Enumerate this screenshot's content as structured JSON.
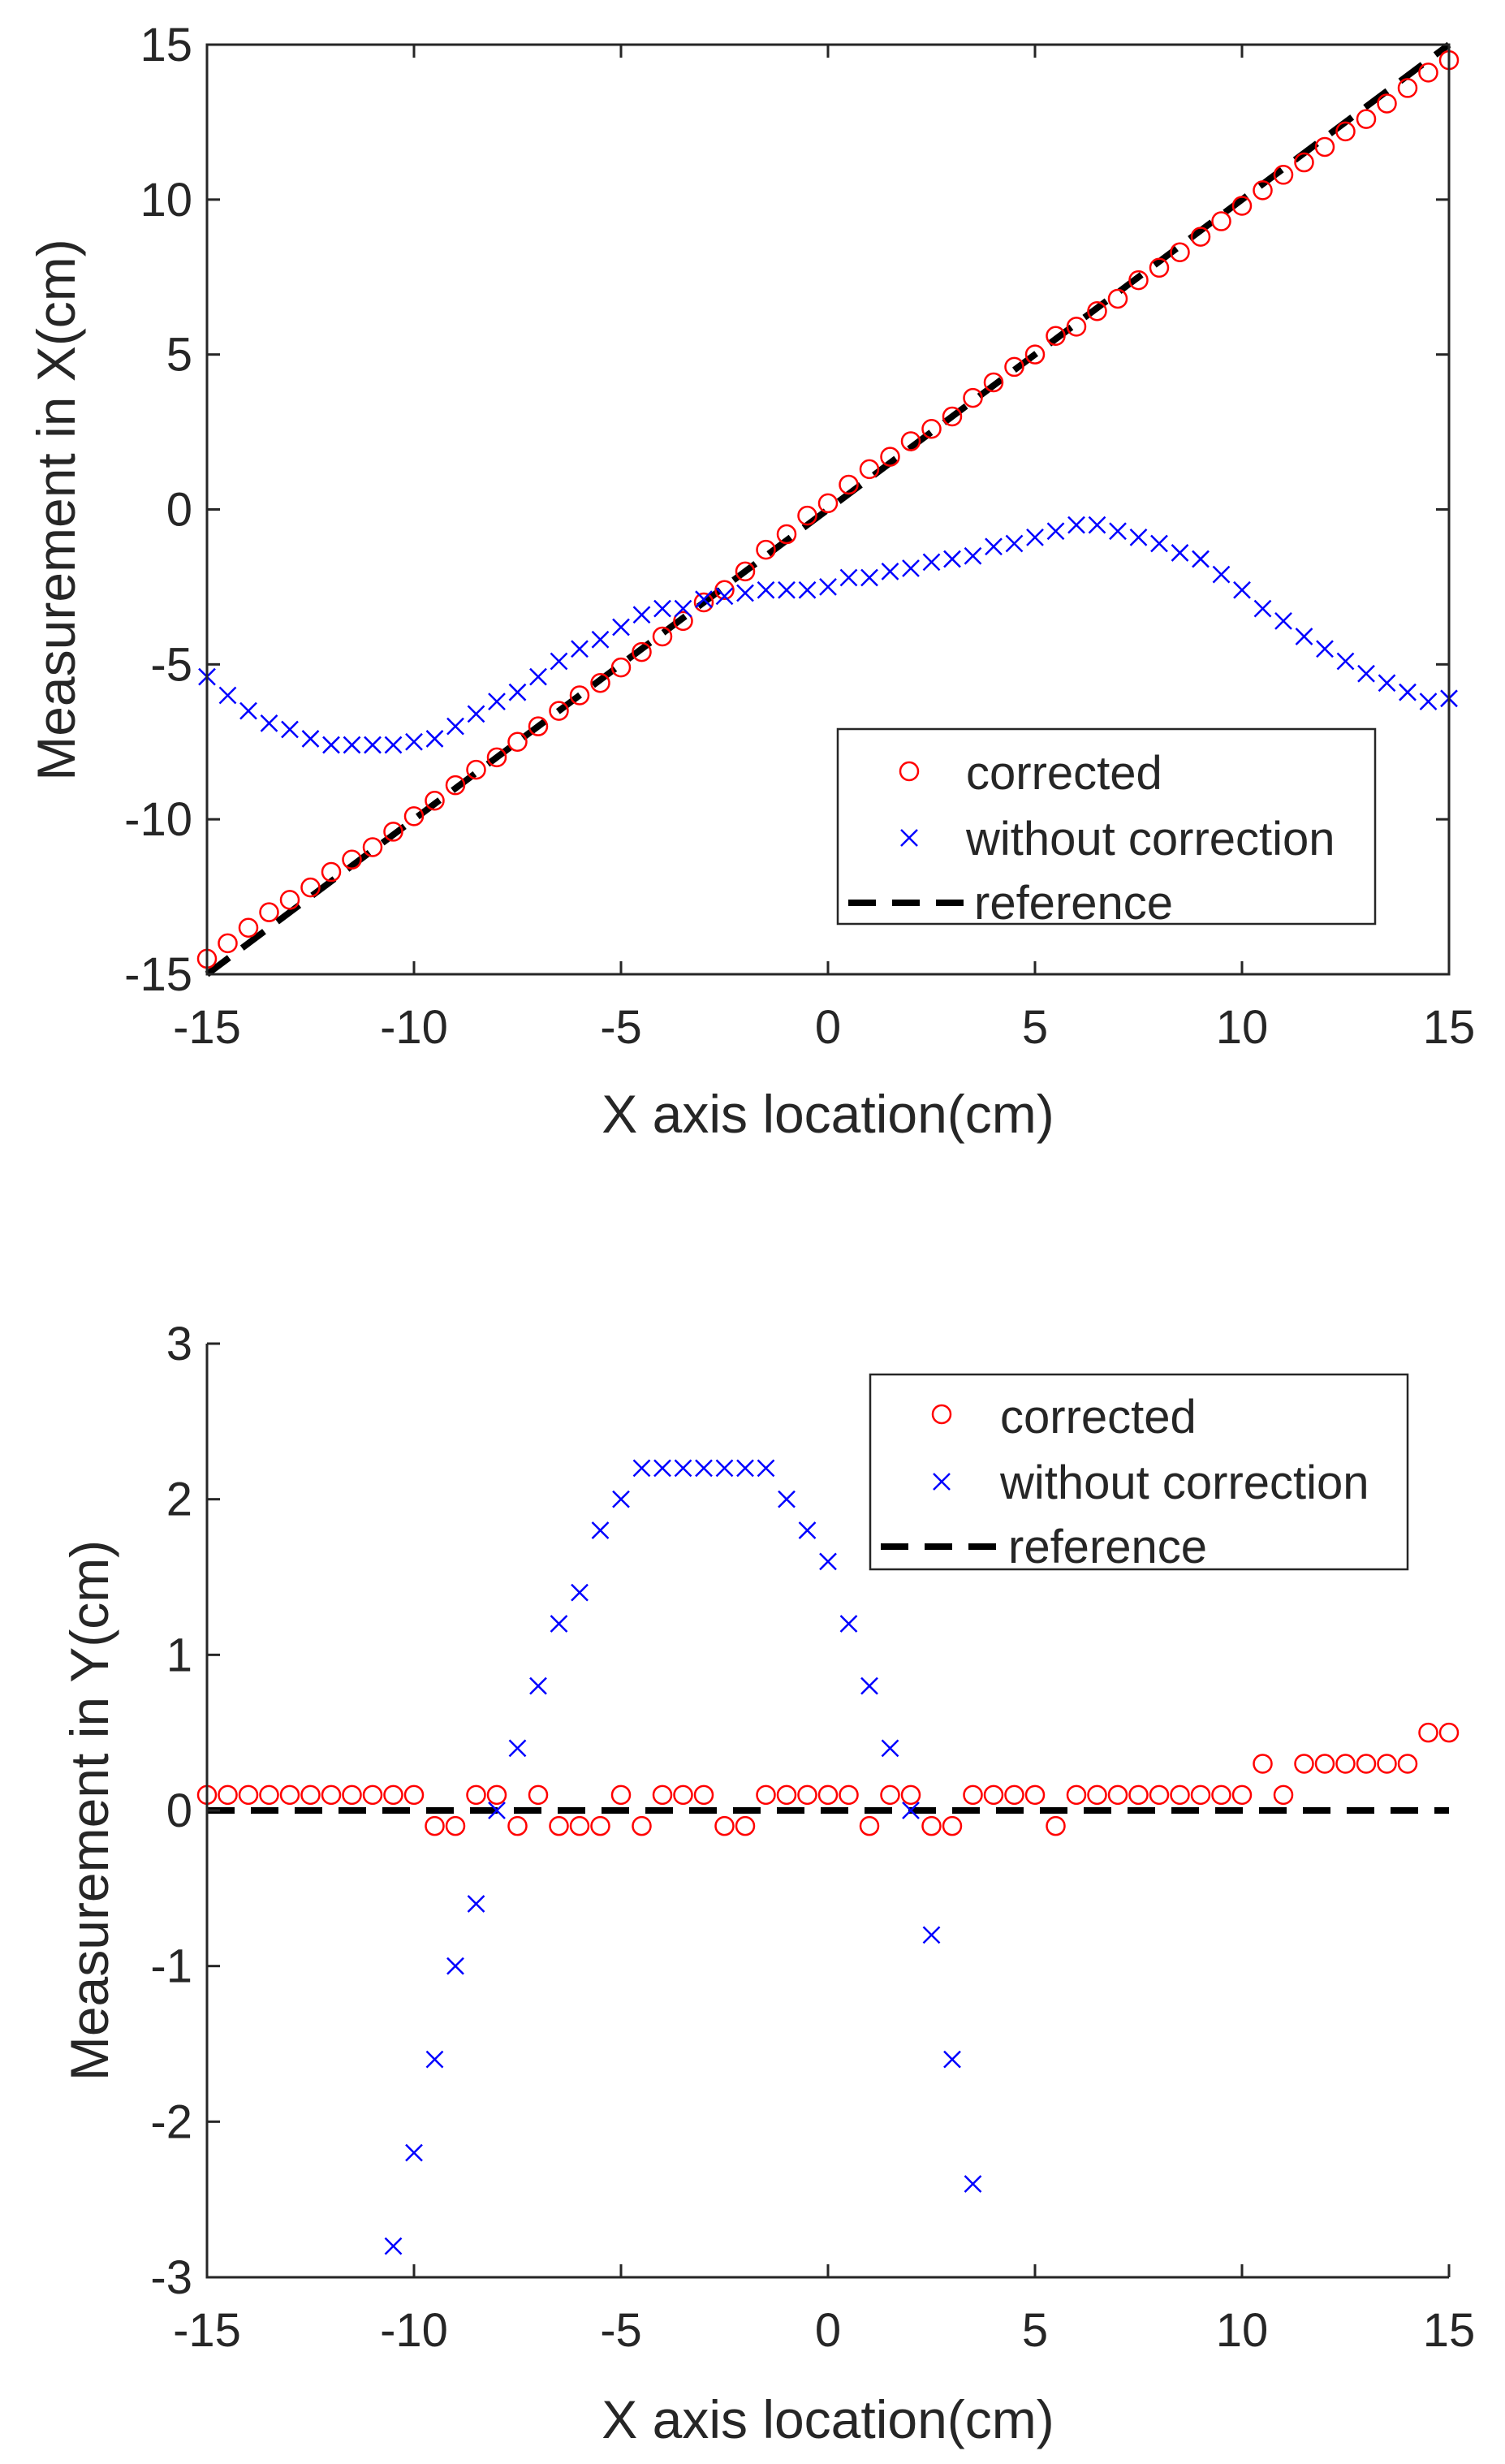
{
  "chart_data": [
    {
      "type": "scatter",
      "xlabel": "X axis location(cm)",
      "ylabel": "Measurement in X(cm)",
      "xlim": [
        -15,
        15
      ],
      "ylim": [
        -15,
        15
      ],
      "xticks": [
        "-15",
        "-10",
        "-5",
        "0",
        "5",
        "10",
        "15"
      ],
      "yticks": [
        "15",
        "10",
        "5",
        "0",
        "-5",
        "-10",
        "-15"
      ],
      "legend_position": "lower-right",
      "series": [
        {
          "name": "corrected",
          "marker": "circle",
          "color": "#ff0000",
          "x": [
            -15,
            -14.5,
            -14,
            -13.5,
            -13,
            -12.5,
            -12,
            -11.5,
            -11,
            -10.5,
            -10,
            -9.5,
            -9,
            -8.5,
            -8,
            -7.5,
            -7,
            -6.5,
            -6,
            -5.5,
            -5,
            -4.5,
            -4,
            -3.5,
            -3,
            -2.5,
            -2,
            -1.5,
            -1,
            -0.5,
            0,
            0.5,
            1,
            1.5,
            2,
            2.5,
            3,
            3.5,
            4,
            4.5,
            5,
            5.5,
            6,
            6.5,
            7,
            7.5,
            8,
            8.5,
            9,
            9.5,
            10,
            10.5,
            11,
            11.5,
            12,
            12.5,
            13,
            13.5,
            14,
            14.5,
            15
          ],
          "y": [
            -14.5,
            -14,
            -13.5,
            -13,
            -12.6,
            -12.2,
            -11.7,
            -11.3,
            -10.9,
            -10.4,
            -9.9,
            -9.4,
            -8.9,
            -8.4,
            -8,
            -7.5,
            -7,
            -6.5,
            -6,
            -5.6,
            -5.1,
            -4.6,
            -4.1,
            -3.6,
            -3,
            -2.6,
            -2,
            -1.3,
            -0.8,
            -0.2,
            0.2,
            0.8,
            1.3,
            1.7,
            2.2,
            2.6,
            3,
            3.6,
            4.1,
            4.6,
            5,
            5.6,
            5.9,
            6.4,
            6.8,
            7.4,
            7.8,
            8.3,
            8.8,
            9.3,
            9.8,
            10.3,
            10.8,
            11.2,
            11.7,
            12.2,
            12.6,
            13.1,
            13.6,
            14.1,
            14.5
          ]
        },
        {
          "name": "without correction",
          "marker": "x",
          "color": "#0000ff",
          "x": [
            -15,
            -14.5,
            -14,
            -13.5,
            -13,
            -12.5,
            -12,
            -11.5,
            -11,
            -10.5,
            -10,
            -9.5,
            -9,
            -8.5,
            -8,
            -7.5,
            -7,
            -6.5,
            -6,
            -5.5,
            -5,
            -4.5,
            -4,
            -3.5,
            -3,
            -2.5,
            -2,
            -1.5,
            -1,
            -0.5,
            0,
            0.5,
            1,
            1.5,
            2,
            2.5,
            3,
            3.5,
            4,
            4.5,
            5,
            5.5,
            6,
            6.5,
            7,
            7.5,
            8,
            8.5,
            9,
            9.5,
            10,
            10.5,
            11,
            11.5,
            12,
            12.5,
            13,
            13.5,
            14,
            14.5,
            15
          ],
          "y": [
            -5.4,
            -6,
            -6.5,
            -6.9,
            -7.1,
            -7.4,
            -7.6,
            -7.6,
            -7.6,
            -7.6,
            -7.5,
            -7.4,
            -7,
            -6.6,
            -6.2,
            -5.9,
            -5.4,
            -4.9,
            -4.5,
            -4.2,
            -3.8,
            -3.4,
            -3.2,
            -3.2,
            -2.9,
            -2.8,
            -2.7,
            -2.6,
            -2.6,
            -2.6,
            -2.5,
            -2.2,
            -2.2,
            -2,
            -1.9,
            -1.7,
            -1.6,
            -1.5,
            -1.2,
            -1.1,
            -0.9,
            -0.7,
            -0.5,
            -0.5,
            -0.7,
            -0.9,
            -1.1,
            -1.4,
            -1.6,
            -2.1,
            -2.6,
            -3.2,
            -3.6,
            -4.1,
            -4.5,
            -4.9,
            -5.3,
            -5.6,
            -5.9,
            -6.2,
            -6.1
          ]
        },
        {
          "name": "reference",
          "type": "line",
          "style": "dashed",
          "color": "#000000",
          "x": [
            -15,
            15
          ],
          "y": [
            -15,
            15
          ]
        }
      ]
    },
    {
      "type": "scatter",
      "xlabel": "X axis location(cm)",
      "ylabel": "Measurement in Y(cm)",
      "xlim": [
        -15,
        15
      ],
      "ylim": [
        -3,
        3
      ],
      "xticks": [
        "-15",
        "-10",
        "-5",
        "0",
        "5",
        "10",
        "15"
      ],
      "yticks": [
        "3",
        "2",
        "1",
        "0",
        "-1",
        "-2",
        "-3"
      ],
      "legend_position": "top-right",
      "series": [
        {
          "name": "corrected",
          "marker": "circle",
          "color": "#ff0000",
          "x": [
            -15,
            -14.5,
            -14,
            -13.5,
            -13,
            -12.5,
            -12,
            -11.5,
            -11,
            -10.5,
            -10,
            -9.5,
            -9,
            -8.5,
            -8,
            -7.5,
            -7,
            -6.5,
            -6,
            -5.5,
            -5,
            -4.5,
            -4,
            -3.5,
            -3,
            -2.5,
            -2,
            -1.5,
            -1,
            -0.5,
            0,
            0.5,
            1,
            1.5,
            2,
            2.5,
            3,
            3.5,
            4,
            4.5,
            5,
            5.5,
            6,
            6.5,
            7,
            7.5,
            8,
            8.5,
            9,
            9.5,
            10,
            10.5,
            11,
            11.5,
            12,
            12.5,
            13,
            13.5,
            14,
            14.5,
            15
          ],
          "y": [
            0.1,
            0.1,
            0.1,
            0.1,
            0.1,
            0.1,
            0.1,
            0.1,
            0.1,
            0.1,
            0.1,
            -0.1,
            -0.1,
            0.1,
            0.1,
            -0.1,
            0.1,
            -0.1,
            -0.1,
            -0.1,
            0.1,
            -0.1,
            0.1,
            0.1,
            0.1,
            -0.1,
            -0.1,
            0.1,
            0.1,
            0.1,
            0.1,
            0.1,
            -0.1,
            0.1,
            0.1,
            -0.1,
            -0.1,
            0.1,
            0.1,
            0.1,
            0.1,
            -0.1,
            0.1,
            0.1,
            0.1,
            0.1,
            0.1,
            0.1,
            0.1,
            0.1,
            0.1,
            0.3,
            0.1,
            0.3,
            0.3,
            0.3,
            0.3,
            0.3,
            0.3,
            0.5,
            0.5
          ]
        },
        {
          "name": "without correction",
          "marker": "x",
          "color": "#0000ff",
          "x": [
            -10.5,
            -10,
            -9.5,
            -9,
            -8.5,
            -8,
            -7.5,
            -7,
            -6.5,
            -6,
            -5.5,
            -5,
            -4.5,
            -4,
            -3.5,
            -3,
            -2.5,
            -2,
            -1.5,
            -1,
            -0.5,
            0,
            0.5,
            1,
            1.5,
            2,
            2.5,
            3,
            3.5
          ],
          "y": [
            -2.8,
            -2.2,
            -1.6,
            -1,
            -0.6,
            0,
            0.4,
            0.8,
            1.2,
            1.4,
            1.8,
            2,
            2.2,
            2.2,
            2.2,
            2.2,
            2.2,
            2.2,
            2.2,
            2,
            1.8,
            1.6,
            1.2,
            0.8,
            0.4,
            0,
            -0.8,
            -1.6,
            -2.4
          ]
        },
        {
          "name": "reference",
          "type": "line",
          "style": "dashed",
          "color": "#000000",
          "x": [
            -15,
            15
          ],
          "y": [
            0,
            0
          ]
        }
      ]
    }
  ]
}
